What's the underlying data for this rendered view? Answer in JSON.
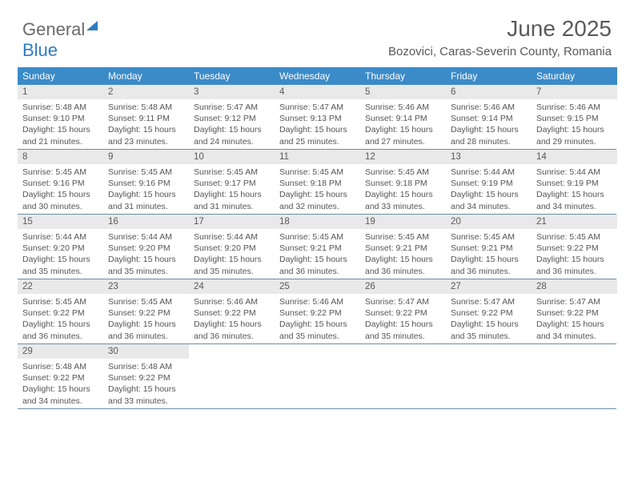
{
  "logo": {
    "part1": "General",
    "part2": "Blue"
  },
  "title": "June 2025",
  "subtitle": "Bozovici, Caras-Severin County, Romania",
  "colors": {
    "header_bg": "#3b8bc8",
    "header_text": "#ffffff",
    "daynum_bg": "#e9e9e9",
    "text": "#595959",
    "rule": "#6b8fab",
    "logo_blue": "#2e7cc0"
  },
  "day_headers": [
    "Sunday",
    "Monday",
    "Tuesday",
    "Wednesday",
    "Thursday",
    "Friday",
    "Saturday"
  ],
  "weeks": [
    [
      {
        "n": "1",
        "sr": "5:48 AM",
        "ss": "9:10 PM",
        "dl": "15 hours and 21 minutes."
      },
      {
        "n": "2",
        "sr": "5:48 AM",
        "ss": "9:11 PM",
        "dl": "15 hours and 23 minutes."
      },
      {
        "n": "3",
        "sr": "5:47 AM",
        "ss": "9:12 PM",
        "dl": "15 hours and 24 minutes."
      },
      {
        "n": "4",
        "sr": "5:47 AM",
        "ss": "9:13 PM",
        "dl": "15 hours and 25 minutes."
      },
      {
        "n": "5",
        "sr": "5:46 AM",
        "ss": "9:14 PM",
        "dl": "15 hours and 27 minutes."
      },
      {
        "n": "6",
        "sr": "5:46 AM",
        "ss": "9:14 PM",
        "dl": "15 hours and 28 minutes."
      },
      {
        "n": "7",
        "sr": "5:46 AM",
        "ss": "9:15 PM",
        "dl": "15 hours and 29 minutes."
      }
    ],
    [
      {
        "n": "8",
        "sr": "5:45 AM",
        "ss": "9:16 PM",
        "dl": "15 hours and 30 minutes."
      },
      {
        "n": "9",
        "sr": "5:45 AM",
        "ss": "9:16 PM",
        "dl": "15 hours and 31 minutes."
      },
      {
        "n": "10",
        "sr": "5:45 AM",
        "ss": "9:17 PM",
        "dl": "15 hours and 31 minutes."
      },
      {
        "n": "11",
        "sr": "5:45 AM",
        "ss": "9:18 PM",
        "dl": "15 hours and 32 minutes."
      },
      {
        "n": "12",
        "sr": "5:45 AM",
        "ss": "9:18 PM",
        "dl": "15 hours and 33 minutes."
      },
      {
        "n": "13",
        "sr": "5:44 AM",
        "ss": "9:19 PM",
        "dl": "15 hours and 34 minutes."
      },
      {
        "n": "14",
        "sr": "5:44 AM",
        "ss": "9:19 PM",
        "dl": "15 hours and 34 minutes."
      }
    ],
    [
      {
        "n": "15",
        "sr": "5:44 AM",
        "ss": "9:20 PM",
        "dl": "15 hours and 35 minutes."
      },
      {
        "n": "16",
        "sr": "5:44 AM",
        "ss": "9:20 PM",
        "dl": "15 hours and 35 minutes."
      },
      {
        "n": "17",
        "sr": "5:44 AM",
        "ss": "9:20 PM",
        "dl": "15 hours and 35 minutes."
      },
      {
        "n": "18",
        "sr": "5:45 AM",
        "ss": "9:21 PM",
        "dl": "15 hours and 36 minutes."
      },
      {
        "n": "19",
        "sr": "5:45 AM",
        "ss": "9:21 PM",
        "dl": "15 hours and 36 minutes."
      },
      {
        "n": "20",
        "sr": "5:45 AM",
        "ss": "9:21 PM",
        "dl": "15 hours and 36 minutes."
      },
      {
        "n": "21",
        "sr": "5:45 AM",
        "ss": "9:22 PM",
        "dl": "15 hours and 36 minutes."
      }
    ],
    [
      {
        "n": "22",
        "sr": "5:45 AM",
        "ss": "9:22 PM",
        "dl": "15 hours and 36 minutes."
      },
      {
        "n": "23",
        "sr": "5:45 AM",
        "ss": "9:22 PM",
        "dl": "15 hours and 36 minutes."
      },
      {
        "n": "24",
        "sr": "5:46 AM",
        "ss": "9:22 PM",
        "dl": "15 hours and 36 minutes."
      },
      {
        "n": "25",
        "sr": "5:46 AM",
        "ss": "9:22 PM",
        "dl": "15 hours and 35 minutes."
      },
      {
        "n": "26",
        "sr": "5:47 AM",
        "ss": "9:22 PM",
        "dl": "15 hours and 35 minutes."
      },
      {
        "n": "27",
        "sr": "5:47 AM",
        "ss": "9:22 PM",
        "dl": "15 hours and 35 minutes."
      },
      {
        "n": "28",
        "sr": "5:47 AM",
        "ss": "9:22 PM",
        "dl": "15 hours and 34 minutes."
      }
    ],
    [
      {
        "n": "29",
        "sr": "5:48 AM",
        "ss": "9:22 PM",
        "dl": "15 hours and 34 minutes."
      },
      {
        "n": "30",
        "sr": "5:48 AM",
        "ss": "9:22 PM",
        "dl": "15 hours and 33 minutes."
      },
      null,
      null,
      null,
      null,
      null
    ]
  ],
  "labels": {
    "sunrise": "Sunrise:",
    "sunset": "Sunset:",
    "daylight": "Daylight:"
  }
}
